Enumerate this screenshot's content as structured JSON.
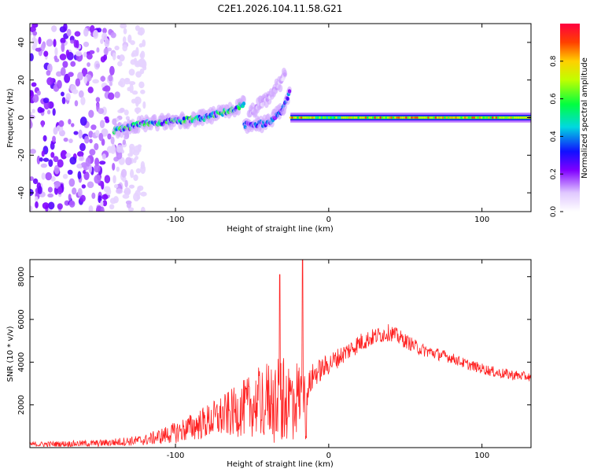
{
  "chart_data": [
    {
      "type": "heatmap",
      "title": "C2E1.2026.104.11.58.G21",
      "xlabel": "Height of straight line (km)",
      "ylabel": "Frequency (Hz)",
      "xlim": [
        -195,
        132
      ],
      "ylim": [
        -50,
        50
      ],
      "xticks": [
        -100,
        0,
        100
      ],
      "yticks": [
        -40,
        -20,
        0,
        20,
        40
      ],
      "xtick_labels": [
        "-100",
        "0",
        "100"
      ],
      "ytick_labels": [
        "-40",
        "-20",
        "0",
        "20",
        "40"
      ],
      "colorbar": {
        "label": "Normalized spectral amplitude",
        "range": [
          0.0,
          1.0
        ],
        "ticks": [
          0.0,
          0.2,
          0.4,
          0.6,
          0.8
        ],
        "tick_labels": [
          "0.0",
          "0.2",
          "0.4",
          "0.6",
          "0.8"
        ]
      },
      "features": [
        {
          "name": "noise",
          "x": [
            -195,
            -120
          ],
          "f": [
            -50,
            50
          ],
          "amplitude": 0.15
        },
        {
          "name": "rising-track",
          "points": [
            [
              -140,
              -7
            ],
            [
              -120,
              -3
            ],
            [
              -100,
              -2
            ],
            [
              -80,
              0
            ],
            [
              -60,
              5
            ],
            [
              -55,
              8
            ]
          ],
          "amplitude": 0.45
        },
        {
          "name": "second-track",
          "points": [
            [
              -52,
              2
            ],
            [
              -40,
              10
            ],
            [
              -30,
              20
            ],
            [
              -28,
              25
            ]
          ],
          "amplitude": 0.1
        },
        {
          "name": "third-track",
          "points": [
            [
              -55,
              -4
            ],
            [
              -40,
              -3
            ],
            [
              -30,
              4
            ],
            [
              -25,
              15
            ]
          ],
          "amplitude": 0.3
        },
        {
          "name": "carrier",
          "x": [
            -25,
            132
          ],
          "f": 0,
          "amplitude": 0.95
        }
      ]
    },
    {
      "type": "line",
      "title": "",
      "xlabel": "Height of straight line (km)",
      "ylabel": "SNR (10 * v/v)",
      "xlim": [
        -195,
        132
      ],
      "ylim": [
        0,
        8800
      ],
      "xticks": [
        -100,
        0,
        100
      ],
      "yticks": [
        2000,
        4000,
        6000,
        8000
      ],
      "xtick_labels": [
        "-100",
        "0",
        "100"
      ],
      "ytick_labels": [
        "2000",
        "4000",
        "6000",
        "8000"
      ],
      "series": [
        {
          "name": "SNR",
          "color": "#ff2020",
          "envelope": {
            "x": [
              -195,
              -150,
              -120,
              -100,
              -80,
              -60,
              -40,
              -30,
              -20,
              -15,
              -10,
              0,
              10,
              20,
              30,
              40,
              50,
              60,
              70,
              80,
              90,
              100,
              110,
              120,
              132
            ],
            "base": [
              150,
              200,
              350,
              700,
              1200,
              1700,
              2300,
              2200,
              2400,
              2500,
              3400,
              3900,
              4400,
              4900,
              5200,
              5400,
              5000,
              4600,
              4400,
              4200,
              3900,
              3700,
              3500,
              3400,
              3300
            ],
            "spread": [
              120,
              160,
              250,
              500,
              800,
              1200,
              1800,
              2000,
              1800,
              800,
              600,
              500,
              450,
              450,
              400,
              400,
              350,
              300,
              300,
              250,
              250,
              250,
              250,
              250,
              200
            ]
          },
          "spikes": [
            {
              "x": -32,
              "y": 8100
            },
            {
              "x": -17,
              "y": 8800
            }
          ]
        }
      ]
    }
  ]
}
